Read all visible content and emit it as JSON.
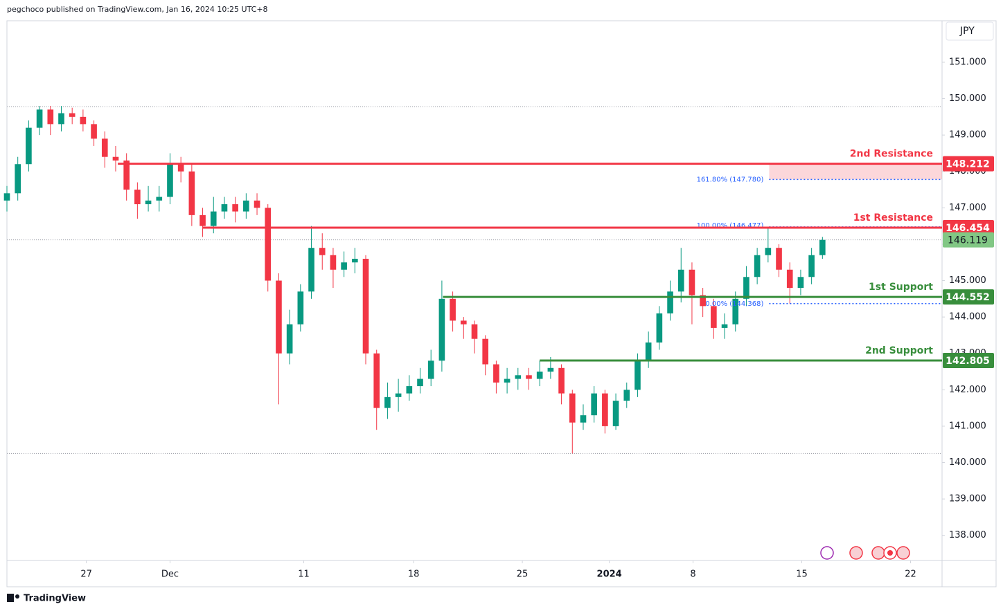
{
  "header": "pegchoco published on TradingView.com, Jan 16, 2024 10:25 UTC+8",
  "footer": "TradingView",
  "chart_data": {
    "type": "candlestick",
    "currency": "JPY",
    "up_color": "#089981",
    "down_color": "#f23645",
    "xlim": [
      0,
      86
    ],
    "ylim": [
      137.31,
      152.14
    ],
    "xticks": [
      {
        "value": 7.3,
        "label": "27"
      },
      {
        "value": 15,
        "label": "Dec"
      },
      {
        "value": 27.3,
        "label": "11"
      },
      {
        "value": 37.4,
        "label": "18"
      },
      {
        "value": 47.4,
        "label": "25"
      },
      {
        "value": 55.4,
        "label": "2024"
      },
      {
        "value": 63.1,
        "label": "8"
      },
      {
        "value": 73.1,
        "label": "15"
      },
      {
        "value": 83.1,
        "label": "22"
      }
    ],
    "yticks": [
      {
        "value": 138,
        "label": "138.000"
      },
      {
        "value": 139,
        "label": "139.000"
      },
      {
        "value": 140,
        "label": "140.000"
      },
      {
        "value": 141,
        "label": "141.000"
      },
      {
        "value": 142,
        "label": "142.000"
      },
      {
        "value": 143,
        "label": "143.000"
      },
      {
        "value": 144,
        "label": "144.000"
      },
      {
        "value": 145,
        "label": "145.000"
      },
      {
        "value": 146,
        "label": "146.000"
      },
      {
        "value": 147,
        "label": "147.000"
      },
      {
        "value": 148,
        "label": "148.000"
      },
      {
        "value": 149,
        "label": "149.000"
      },
      {
        "value": 150,
        "label": "150.000"
      },
      {
        "value": 151,
        "label": "151.000"
      }
    ],
    "x": [
      0,
      1,
      2,
      3,
      4,
      5,
      6,
      7,
      8,
      9,
      10,
      11,
      12,
      13,
      14,
      15,
      16,
      17,
      18,
      19,
      20,
      21,
      22,
      23,
      24,
      25,
      26,
      27,
      28,
      29,
      30,
      31,
      32,
      33,
      34,
      35,
      36,
      37,
      38,
      39,
      40,
      41,
      42,
      43,
      44,
      45,
      46,
      47,
      48,
      49,
      50,
      51,
      52,
      53,
      54,
      55,
      56,
      57,
      58,
      59,
      60,
      61,
      62,
      63,
      64,
      65,
      66,
      67,
      68,
      69,
      70,
      71,
      72,
      73,
      74,
      75
    ],
    "open": [
      147.2,
      147.4,
      148.2,
      149.2,
      149.7,
      149.3,
      149.6,
      149.5,
      149.3,
      148.9,
      148.4,
      148.3,
      147.5,
      147.1,
      147.2,
      147.3,
      148.2,
      148.0,
      146.8,
      146.5,
      146.9,
      147.1,
      146.9,
      147.2,
      147.0,
      145.0,
      143.0,
      143.8,
      144.7,
      145.9,
      145.7,
      145.3,
      145.5,
      145.6,
      143.0,
      141.5,
      141.8,
      141.9,
      142.1,
      142.3,
      142.8,
      144.5,
      143.9,
      143.8,
      143.4,
      142.7,
      142.2,
      142.3,
      142.4,
      142.3,
      142.5,
      142.6,
      141.9,
      141.1,
      141.3,
      141.9,
      141.0,
      141.7,
      142.0,
      142.8,
      143.3,
      144.1,
      144.7,
      145.3,
      144.6,
      144.3,
      143.7,
      143.8,
      144.5,
      145.1,
      145.7,
      145.9,
      145.3,
      144.8,
      145.1,
      145.7
    ],
    "high": [
      147.6,
      148.4,
      149.4,
      149.8,
      149.8,
      149.8,
      149.75,
      149.7,
      149.4,
      149.1,
      148.7,
      148.5,
      147.7,
      147.6,
      147.6,
      148.5,
      148.4,
      148.2,
      147.0,
      147.3,
      147.3,
      147.3,
      147.4,
      147.4,
      147.1,
      145.2,
      144.2,
      144.9,
      146.5,
      146.3,
      145.9,
      145.8,
      145.9,
      145.7,
      143.1,
      142.2,
      142.3,
      142.4,
      142.6,
      143.1,
      145.0,
      144.7,
      144.0,
      143.9,
      143.5,
      142.8,
      142.6,
      142.6,
      142.6,
      142.8,
      142.9,
      142.7,
      142.0,
      141.6,
      142.1,
      142.0,
      141.9,
      142.2,
      143.0,
      143.6,
      144.3,
      145.0,
      145.9,
      145.5,
      144.8,
      144.5,
      144.1,
      144.7,
      145.4,
      145.9,
      146.48,
      146.0,
      145.5,
      145.3,
      145.9,
      146.2
    ],
    "low": [
      146.9,
      147.2,
      148.0,
      149.0,
      149.0,
      149.1,
      149.3,
      149.1,
      148.7,
      148.1,
      148.0,
      147.2,
      146.7,
      146.9,
      146.9,
      147.1,
      147.7,
      146.5,
      146.2,
      146.3,
      146.7,
      146.6,
      146.7,
      146.8,
      144.7,
      141.6,
      142.7,
      143.6,
      144.5,
      145.3,
      144.8,
      145.1,
      145.2,
      142.7,
      140.9,
      141.2,
      141.4,
      141.7,
      141.9,
      142.1,
      142.5,
      143.6,
      143.4,
      143.0,
      142.4,
      141.9,
      141.9,
      142.0,
      142.0,
      142.1,
      142.3,
      141.6,
      140.25,
      140.9,
      141.1,
      140.8,
      140.9,
      141.5,
      141.8,
      142.6,
      143.1,
      143.9,
      144.4,
      143.8,
      144.0,
      143.4,
      143.4,
      143.6,
      144.3,
      144.9,
      145.5,
      145.1,
      144.37,
      144.6,
      144.9,
      145.6
    ],
    "close": [
      147.4,
      148.2,
      149.2,
      149.7,
      149.3,
      149.6,
      149.5,
      149.3,
      148.9,
      148.4,
      148.3,
      147.5,
      147.1,
      147.2,
      147.3,
      148.2,
      148.0,
      146.8,
      146.5,
      146.9,
      147.1,
      146.9,
      147.2,
      147.0,
      145.0,
      143.0,
      143.8,
      144.7,
      145.9,
      145.7,
      145.3,
      145.5,
      145.6,
      143.0,
      141.5,
      141.8,
      141.9,
      142.1,
      142.3,
      142.8,
      144.5,
      143.9,
      143.8,
      143.4,
      142.7,
      142.2,
      142.3,
      142.4,
      142.3,
      142.5,
      142.6,
      141.9,
      141.1,
      141.3,
      141.9,
      141.0,
      141.7,
      142.0,
      142.8,
      143.3,
      144.1,
      144.7,
      145.3,
      144.6,
      144.3,
      143.7,
      143.8,
      144.5,
      145.1,
      145.7,
      145.9,
      145.3,
      144.8,
      145.1,
      145.7,
      146.119
    ],
    "levels": [
      {
        "name": "2nd Resistance",
        "value": 148.212,
        "color": "#f23645",
        "start": 10.2
      },
      {
        "name": "1st Resistance",
        "value": 146.454,
        "color": "#f23645",
        "start": 18
      },
      {
        "name": "1st Support",
        "value": 144.552,
        "color": "#388e3c",
        "start": 40.1
      },
      {
        "name": "2nd Support",
        "value": 142.805,
        "color": "#388e3c",
        "start": 49
      }
    ],
    "fib_levels": [
      {
        "label": "161.80% (147.780)",
        "value": 147.78,
        "start": 70.1
      },
      {
        "label": "100.00% (146.477)",
        "value": 146.477,
        "start": 70.1
      },
      {
        "label": "0.00% (144.368)",
        "value": 144.368,
        "start": 70.1
      }
    ],
    "fib_color": "#2962ff",
    "current_price": 146.119,
    "current_color": "#81c784",
    "range_high": 149.78,
    "range_low": 140.25
  }
}
